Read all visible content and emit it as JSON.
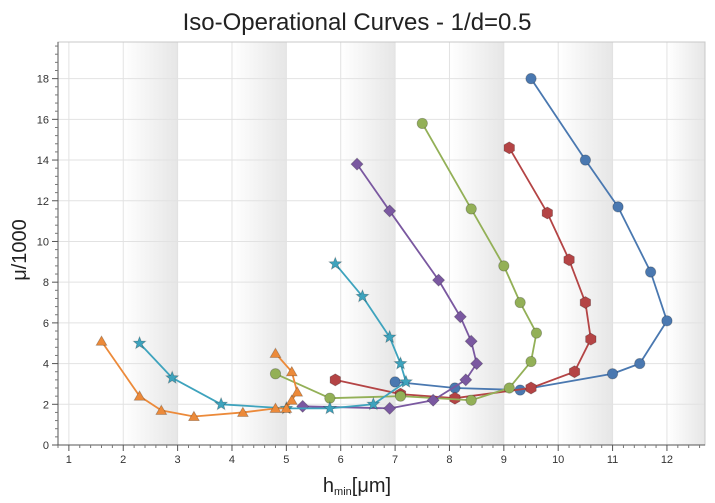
{
  "chart_data": {
    "type": "line",
    "title": "Iso-Operational Curves - 1/d=0.5",
    "xlabel_main": "h",
    "xlabel_sub": "min",
    "xlabel_unit": "[μm]",
    "ylabel": "μ/1000",
    "xlim": [
      0.8,
      12.7
    ],
    "ylim": [
      0,
      19.8
    ],
    "x_ticks": [
      1,
      2,
      3,
      4,
      5,
      6,
      7,
      8,
      9,
      10,
      11,
      12
    ],
    "y_ticks": [
      0,
      2,
      4,
      6,
      8,
      10,
      12,
      14,
      16,
      18
    ],
    "grid": true,
    "series": [
      {
        "marker": "circle",
        "color": "#4a78b0",
        "x": [
          9.5,
          10.5,
          11.1,
          11.7,
          12.0,
          11.5,
          11.0,
          9.3,
          8.1,
          7.0
        ],
        "y": [
          18.0,
          14.0,
          11.7,
          8.5,
          6.1,
          4.0,
          3.5,
          2.7,
          2.8,
          3.1
        ]
      },
      {
        "marker": "hexagon",
        "color": "#b44445",
        "x": [
          9.1,
          9.8,
          10.2,
          10.5,
          10.6,
          10.3,
          9.5,
          8.1,
          7.1,
          5.9
        ],
        "y": [
          14.6,
          11.4,
          9.1,
          7.0,
          5.2,
          3.6,
          2.8,
          2.3,
          2.5,
          3.2
        ]
      },
      {
        "marker": "circle",
        "color": "#93b057",
        "x": [
          7.5,
          8.4,
          9.0,
          9.3,
          9.6,
          9.5,
          9.1,
          8.4,
          7.1,
          5.8,
          4.8
        ],
        "y": [
          15.8,
          11.6,
          8.8,
          7.0,
          5.5,
          4.1,
          2.8,
          2.2,
          2.4,
          2.3,
          3.5
        ]
      },
      {
        "marker": "diamond",
        "color": "#7a58a0",
        "x": [
          6.3,
          6.9,
          7.8,
          8.2,
          8.4,
          8.5,
          8.3,
          7.7,
          6.9,
          5.3
        ],
        "y": [
          13.8,
          11.5,
          8.1,
          6.3,
          5.1,
          4.0,
          3.2,
          2.2,
          1.8,
          1.9
        ]
      },
      {
        "marker": "star",
        "color": "#3ea3bd",
        "x": [
          5.9,
          6.4,
          6.9,
          7.1,
          7.2,
          6.6,
          5.8,
          5.0,
          3.8,
          2.9,
          2.3
        ],
        "y": [
          8.9,
          7.3,
          5.3,
          4.0,
          3.1,
          2.0,
          1.8,
          1.8,
          2.0,
          3.3,
          5.0
        ]
      },
      {
        "marker": "triangle",
        "color": "#ec8a3a",
        "x": [
          1.6,
          2.3,
          2.7,
          3.3,
          4.2,
          4.8,
          5.0,
          5.1,
          5.2,
          5.1,
          4.8
        ],
        "y": [
          5.1,
          2.4,
          1.7,
          1.4,
          1.6,
          1.8,
          1.8,
          2.2,
          2.6,
          3.6,
          4.5
        ]
      }
    ]
  }
}
